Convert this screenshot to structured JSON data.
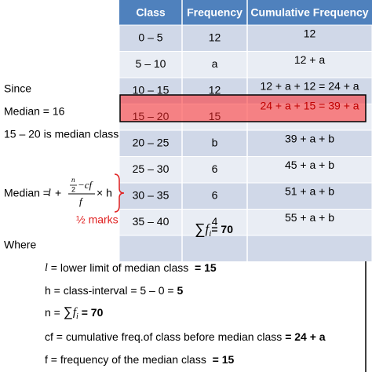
{
  "table": {
    "headers": [
      "Class",
      "Frequency",
      "Cumulative Frequency"
    ],
    "rows": [
      [
        "0 – 5",
        "12",
        "12"
      ],
      [
        "5 – 10",
        "a",
        "12 + a"
      ],
      [
        "10 – 15",
        "12",
        "12 + a + 12 = 24 + a"
      ],
      [
        "15 – 20",
        "15",
        "24 + a + 15 = 39 + a"
      ],
      [
        "20 – 25",
        "b",
        "39 + a + b"
      ],
      [
        "25 – 30",
        "6",
        "45 + a + b"
      ],
      [
        "30 – 35",
        "6",
        "51 + a + b"
      ],
      [
        "35 – 40",
        "4",
        "55 + a + b"
      ]
    ],
    "total": {
      "sum": "∑",
      "f": "f",
      "i": "i",
      "value": "= 70"
    }
  },
  "left": {
    "since": "Since",
    "median": "Median = 16",
    "median_class": "15 – 20 is median class"
  },
  "formula": {
    "label": "Median =",
    "l": "l",
    "plus": "+",
    "n": "n",
    "two": "2",
    "cf": "−cf",
    "f": "f",
    "times": "× h",
    "note": "½ marks"
  },
  "where": {
    "title": "Where",
    "lines": [
      {
        "var": "l",
        "text": " = lower limit of median class  ",
        "value": "= 15"
      },
      {
        "text": "h = class-interval = 5 – 0 = ",
        "value": "5"
      },
      {
        "text": "n = ",
        "sum": "∑",
        "f": "f",
        "i": "i",
        "value": " = 70"
      },
      {
        "text": "cf = cumulative freq.of class before median class ",
        "value": "= 24 + a"
      },
      {
        "text": "f = frequency of the median class  ",
        "value": "= 15"
      }
    ]
  }
}
